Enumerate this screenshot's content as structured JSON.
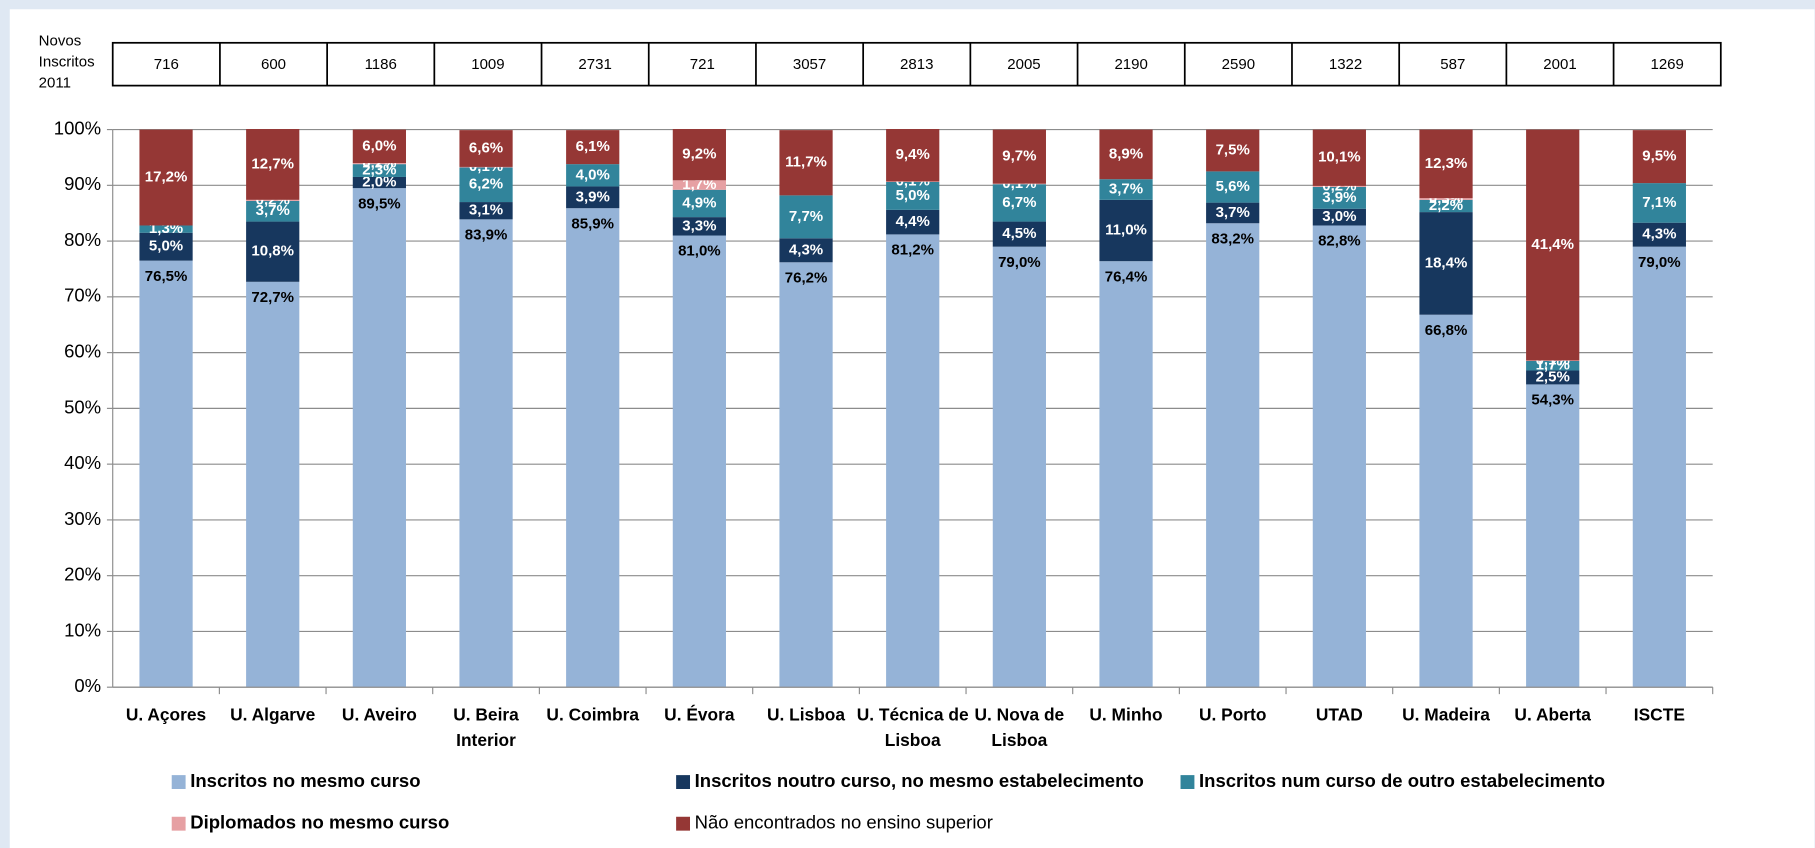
{
  "chart_data": {
    "type": "stacked_bar",
    "table_label": [
      "Novos",
      "Inscritos",
      "2011"
    ],
    "novos_inscritos": [
      716,
      600,
      1186,
      1009,
      2731,
      721,
      3057,
      2813,
      2005,
      2190,
      2590,
      1322,
      587,
      2001,
      1269
    ],
    "categories": [
      "U. Açores",
      "U. Algarve",
      "U. Aveiro",
      "U. Beira Interior",
      "U. Coimbra",
      "U. Évora",
      "U. Lisboa",
      "U. Técnica de Lisboa",
      "U. Nova de Lisboa",
      "U. Minho",
      "U. Porto",
      "UTAD",
      "U. Madeira",
      "U. Aberta",
      "ISCTE"
    ],
    "ylim": [
      0,
      100
    ],
    "yticks": [
      {
        "value": 0,
        "label": "0%"
      },
      {
        "value": 10,
        "label": "10%"
      },
      {
        "value": 20,
        "label": "20%"
      },
      {
        "value": 30,
        "label": "30%"
      },
      {
        "value": 40,
        "label": "40%"
      },
      {
        "value": 50,
        "label": "50%"
      },
      {
        "value": 60,
        "label": "60%"
      },
      {
        "value": 70,
        "label": "70%"
      },
      {
        "value": 80,
        "label": "80%"
      },
      {
        "value": 90,
        "label": "90%"
      },
      {
        "value": 100,
        "label": "100%"
      }
    ],
    "grid": true,
    "series": [
      {
        "name": "Inscritos no mesmo curso",
        "color": "#95b3d7",
        "label_color": "#000000",
        "values": [
          76.5,
          72.7,
          89.5,
          83.9,
          85.9,
          81.0,
          76.2,
          81.2,
          79.0,
          76.4,
          83.2,
          82.8,
          66.8,
          54.3,
          79.0
        ],
        "value_labels": [
          "76,5%",
          "72,7%",
          "89,5%",
          "83,9%",
          "85,9%",
          "81,0%",
          "76,2%",
          "81,2%",
          "79,0%",
          "76,4%",
          "83,2%",
          "82,8%",
          "66,8%",
          "54,3%",
          "79,0%"
        ]
      },
      {
        "name": "Inscritos noutro curso, no mesmo estabelecimento",
        "color": "#17375e",
        "label_color": "#ffffff",
        "values": [
          5.0,
          10.8,
          2.0,
          3.1,
          3.9,
          3.3,
          4.3,
          4.4,
          4.5,
          11.0,
          3.7,
          3.0,
          18.4,
          2.5,
          4.3
        ],
        "value_labels": [
          "5,0%",
          "10,8%",
          "2,0%",
          "3,1%",
          "3,9%",
          "3,3%",
          "4,3%",
          "4,4%",
          "4,5%",
          "11,0%",
          "3,7%",
          "3,0%",
          "18,4%",
          "2,5%",
          "4,3%"
        ]
      },
      {
        "name": "Inscritos num curso de outro estabelecimento",
        "color": "#31849b",
        "label_color": "#ffffff",
        "values": [
          1.3,
          3.7,
          2.3,
          6.2,
          4.0,
          4.9,
          7.7,
          5.0,
          6.7,
          3.7,
          5.6,
          3.9,
          2.2,
          1.7,
          7.1
        ],
        "value_labels": [
          "1,3%",
          "3,7%",
          "2,3%",
          "6,2%",
          "4,0%",
          "4,9%",
          "7,7%",
          "5,0%",
          "6,7%",
          "3,7%",
          "5,6%",
          "3,9%",
          "2,2%",
          "1,7%",
          "7,1%"
        ]
      },
      {
        "name": "Diplomados no mesmo curso",
        "color": "#e6a0a3",
        "label_color": "#ffffff",
        "values": [
          null,
          0.2,
          0.2,
          0.1,
          null,
          1.7,
          null,
          0.1,
          0.1,
          null,
          null,
          0.2,
          0.3,
          0.1,
          null
        ],
        "value_labels": [
          null,
          "0,2%",
          "0,2%",
          "0,1%",
          null,
          "1,7%",
          null,
          "0,1%",
          "0,1%",
          null,
          null,
          "0,2%",
          "0,3%",
          "0,1%",
          null
        ]
      },
      {
        "name": "Não encontrados no ensino superior",
        "color": "#953735",
        "label_color": "#ffffff",
        "values": [
          17.2,
          12.7,
          6.0,
          6.6,
          6.1,
          9.2,
          11.7,
          9.4,
          9.7,
          8.9,
          7.5,
          10.1,
          12.3,
          41.4,
          9.5
        ],
        "value_labels": [
          "17,2%",
          "12,7%",
          "6,0%",
          "6,6%",
          "6,1%",
          "9,2%",
          "11,7%",
          "9,4%",
          "9,7%",
          "8,9%",
          "7,5%",
          "10,1%",
          "12,3%",
          "41,4%",
          "9,5%"
        ]
      }
    ]
  }
}
